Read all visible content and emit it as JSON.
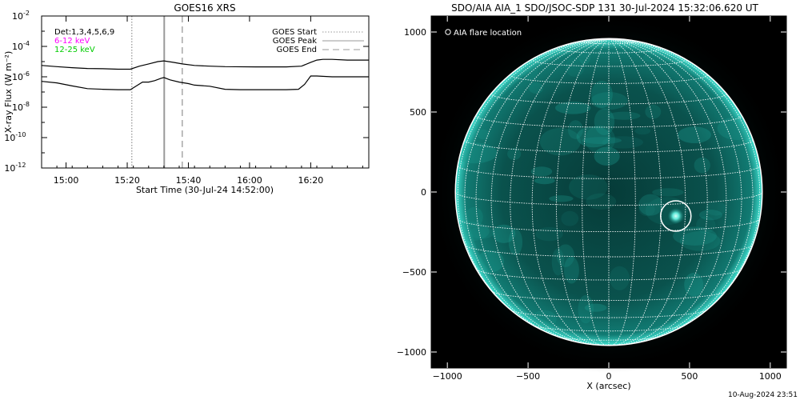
{
  "chart_data": [
    {
      "type": "line",
      "title": "GOES16 XRS",
      "xlabel": "Start Time (30-Jul-24 14:52:00)",
      "ylabel": "X-ray Flux (W m⁻²)",
      "x_unit": "minutes after 14:52:00",
      "xlim": [
        0,
        107
      ],
      "ylim_log10": [
        -12,
        -2
      ],
      "yscale": "log",
      "x_ticks": [
        {
          "x": 8,
          "label": "15:00"
        },
        {
          "x": 28,
          "label": "15:20"
        },
        {
          "x": 48,
          "label": "15:40"
        },
        {
          "x": 68,
          "label": "16:00"
        },
        {
          "x": 88,
          "label": "16:20"
        }
      ],
      "y_ticks": [
        {
          "exp": -2,
          "label": "10",
          "sup": "-2"
        },
        {
          "exp": -4,
          "label": "10",
          "sup": "-4"
        },
        {
          "exp": -6,
          "label": "10",
          "sup": "-6"
        },
        {
          "exp": -8,
          "label": "10",
          "sup": "-8"
        },
        {
          "exp": -10,
          "label": "10",
          "sup": "-10"
        },
        {
          "exp": -12,
          "label": "10",
          "sup": "-12"
        }
      ],
      "text_annotations": {
        "detectors": "Det:1,3,4,5,6,9",
        "band1": "6-12 keV",
        "band2": "12-25 keV"
      },
      "legend": {
        "position": "top-right",
        "entries": [
          {
            "label": "GOES Start",
            "style": "dotted"
          },
          {
            "label": "GOES Peak",
            "style": "solid"
          },
          {
            "label": "GOES End",
            "style": "dashed"
          }
        ]
      },
      "event_lines": {
        "start": 29.5,
        "peak": 40.1,
        "end": 46.0
      },
      "colors": {
        "band1": "#ff00ff",
        "band2": "#00cc00",
        "lines": "#000000",
        "events": "#999999"
      },
      "series": [
        {
          "x": [
            0,
            5,
            10,
            15,
            20,
            25,
            29,
            32,
            35,
            38,
            40,
            43,
            46,
            50,
            55,
            60,
            70,
            80,
            85,
            88,
            90,
            92,
            95,
            100,
            107
          ],
          "y_log10": [
            -5.25,
            -5.33,
            -5.4,
            -5.45,
            -5.47,
            -5.5,
            -5.5,
            -5.3,
            -5.15,
            -5.0,
            -4.95,
            -5.05,
            -5.15,
            -5.25,
            -5.3,
            -5.33,
            -5.35,
            -5.35,
            -5.3,
            -5.05,
            -4.9,
            -4.85,
            -4.85,
            -4.9,
            -4.9
          ]
        },
        {
          "x": [
            0,
            5,
            10,
            15,
            20,
            25,
            29,
            31,
            33,
            35,
            37,
            39,
            40,
            42,
            45,
            48,
            50,
            55,
            60,
            65,
            70,
            75,
            80,
            84,
            86,
            88,
            90,
            95,
            100,
            107
          ],
          "y_log10": [
            -6.3,
            -6.4,
            -6.6,
            -6.78,
            -6.82,
            -6.85,
            -6.85,
            -6.6,
            -6.35,
            -6.35,
            -6.25,
            -6.1,
            -6.05,
            -6.2,
            -6.35,
            -6.45,
            -6.55,
            -6.62,
            -6.82,
            -6.85,
            -6.85,
            -6.85,
            -6.85,
            -6.82,
            -6.5,
            -5.95,
            -5.95,
            -6.0,
            -6.0,
            -6.0
          ]
        }
      ]
    },
    {
      "type": "heatmap",
      "title": "SDO/AIA AIA_1 SDO/JSOC-SDP 131 30-Jul-2024 15:32:06.620 UT",
      "xlabel": "X (arcsec)",
      "ylabel": "",
      "xlim": [
        -1100,
        1100
      ],
      "ylim": [
        -1100,
        1100
      ],
      "x_ticks": [
        {
          "v": -1000,
          "label": "−1000"
        },
        {
          "v": -500,
          "label": "−500"
        },
        {
          "v": 0,
          "label": "0"
        },
        {
          "v": 500,
          "label": "500"
        },
        {
          "v": 1000,
          "label": "1000"
        }
      ],
      "y_ticks": [
        {
          "v": 1000,
          "label": "1000"
        },
        {
          "v": 500,
          "label": "500"
        },
        {
          "v": 0,
          "label": "0"
        },
        {
          "v": -500,
          "label": "−500"
        },
        {
          "v": -1000,
          "label": "−1000"
        }
      ],
      "legend_text": "AIA flare location",
      "flare_location_arcsec": {
        "x": 415,
        "y": -150
      },
      "colors": {
        "disk": "#0e6f68",
        "limb": "#3fe0d0",
        "background": "#000000"
      }
    }
  ],
  "footer": {
    "timestamp": "10-Aug-2024 23:51"
  }
}
